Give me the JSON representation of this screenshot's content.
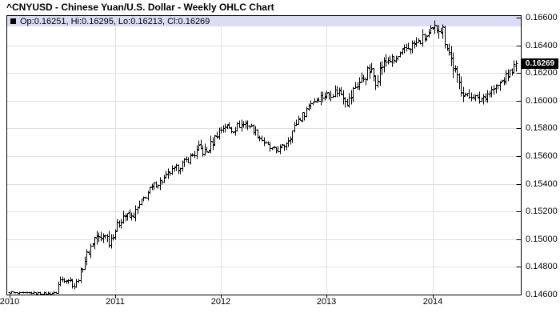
{
  "chart_data": {
    "type": "ohlc",
    "title": "^CNYUSD - Chinese Yuan/U.S. Dollar - Weekly OHLC Chart",
    "symbol": "^CNYUSD",
    "instrument": "Chinese Yuan/U.S. Dollar",
    "interval": "Weekly",
    "legend": {
      "text": "Op:0.16251, Hi:0.16295, Lo:0.16213, Cl:0.16269",
      "open": 0.16251,
      "high": 0.16295,
      "low": 0.16213,
      "close": 0.16269
    },
    "last_price_label": "0.16269",
    "x_axis": {
      "ticks": [
        2010,
        2011,
        2012,
        2013,
        2014
      ],
      "labels": [
        "2010",
        "2011",
        "2012",
        "2013",
        "2014"
      ],
      "range": [
        2010.0,
        2014.85
      ]
    },
    "y_axis": {
      "ticks": [
        0.166,
        0.164,
        0.162,
        0.16,
        0.158,
        0.156,
        0.154,
        0.152,
        0.15,
        0.148,
        0.146
      ],
      "labels": [
        "0.16600",
        "0.16400",
        "0.16200",
        "0.16000",
        "0.15800",
        "0.15600",
        "0.15400",
        "0.15200",
        "0.15000",
        "0.14800",
        "0.14600"
      ],
      "range": [
        0.146,
        0.1661
      ]
    },
    "grid": true,
    "legend_position": "top-left-strip",
    "colors": {
      "bars": "#000000",
      "grid": "#e0e0e0",
      "legend_bg": "#dcdcf4",
      "price_tag_bg": "#000000",
      "price_tag_fg": "#ffffff",
      "axis": "#000000"
    },
    "close_path_anchors": [
      [
        2010.0,
        0.14618,
        0.00018
      ],
      [
        2010.1,
        0.1461,
        0.00018
      ],
      [
        2010.2,
        0.14615,
        0.00018
      ],
      [
        2010.32,
        0.14608,
        0.00018
      ],
      [
        2010.44,
        0.14612,
        0.00022
      ],
      [
        2010.47,
        0.147,
        0.00055
      ],
      [
        2010.53,
        0.14725,
        0.00055
      ],
      [
        2010.58,
        0.147,
        0.0005
      ],
      [
        2010.62,
        0.1466,
        0.0005
      ],
      [
        2010.67,
        0.1476,
        0.0006
      ],
      [
        2010.72,
        0.1487,
        0.00075
      ],
      [
        2010.78,
        0.14965,
        0.00075
      ],
      [
        2010.82,
        0.1503,
        0.0009
      ],
      [
        2010.86,
        0.1499,
        0.0008
      ],
      [
        2010.9,
        0.15055,
        0.0008
      ],
      [
        2010.94,
        0.14985,
        0.0008
      ],
      [
        2011.0,
        0.1507,
        0.0008
      ],
      [
        2011.08,
        0.1518,
        0.00075
      ],
      [
        2011.15,
        0.15155,
        0.0007
      ],
      [
        2011.22,
        0.1523,
        0.0007
      ],
      [
        2011.3,
        0.15335,
        0.00065
      ],
      [
        2011.38,
        0.154,
        0.0006
      ],
      [
        2011.46,
        0.15435,
        0.0006
      ],
      [
        2011.52,
        0.15485,
        0.0006
      ],
      [
        2011.6,
        0.15525,
        0.0006
      ],
      [
        2011.67,
        0.15565,
        0.00065
      ],
      [
        2011.73,
        0.1561,
        0.00075
      ],
      [
        2011.8,
        0.15655,
        0.00095
      ],
      [
        2011.86,
        0.15625,
        0.0008
      ],
      [
        2011.92,
        0.15705,
        0.0008
      ],
      [
        2011.97,
        0.15775,
        0.0007
      ],
      [
        2012.04,
        0.15825,
        0.0007
      ],
      [
        2012.1,
        0.1579,
        0.0007
      ],
      [
        2012.17,
        0.15825,
        0.0007
      ],
      [
        2012.24,
        0.1584,
        0.00065
      ],
      [
        2012.3,
        0.158,
        0.0006
      ],
      [
        2012.36,
        0.15745,
        0.0006
      ],
      [
        2012.42,
        0.15685,
        0.00055
      ],
      [
        2012.48,
        0.1565,
        0.0005
      ],
      [
        2012.54,
        0.15645,
        0.0005
      ],
      [
        2012.6,
        0.1568,
        0.00055
      ],
      [
        2012.66,
        0.1576,
        0.00065
      ],
      [
        2012.72,
        0.15855,
        0.0007
      ],
      [
        2012.78,
        0.15905,
        0.00065
      ],
      [
        2012.84,
        0.15985,
        0.0006
      ],
      [
        2012.9,
        0.16015,
        0.0006
      ],
      [
        2012.96,
        0.16035,
        0.00065
      ],
      [
        2013.04,
        0.16055,
        0.00075
      ],
      [
        2013.1,
        0.16075,
        0.0008
      ],
      [
        2013.16,
        0.1604,
        0.0009
      ],
      [
        2013.21,
        0.15995,
        0.0014
      ],
      [
        2013.26,
        0.16095,
        0.0009
      ],
      [
        2013.33,
        0.1615,
        0.00085
      ],
      [
        2013.4,
        0.16225,
        0.001
      ],
      [
        2013.46,
        0.1616,
        0.00135
      ],
      [
        2013.52,
        0.16255,
        0.00095
      ],
      [
        2013.58,
        0.163,
        0.0008
      ],
      [
        2013.64,
        0.1629,
        0.0008
      ],
      [
        2013.7,
        0.16335,
        0.0008
      ],
      [
        2013.76,
        0.16385,
        0.0008
      ],
      [
        2013.82,
        0.16405,
        0.0008
      ],
      [
        2013.88,
        0.1643,
        0.0009
      ],
      [
        2013.94,
        0.16465,
        0.00095
      ],
      [
        2014.0,
        0.16505,
        0.001
      ],
      [
        2014.05,
        0.16545,
        0.00115
      ],
      [
        2014.09,
        0.1652,
        0.00135
      ],
      [
        2014.13,
        0.1642,
        0.00155
      ],
      [
        2014.18,
        0.16285,
        0.0015
      ],
      [
        2014.23,
        0.16155,
        0.00115
      ],
      [
        2014.28,
        0.1608,
        0.001
      ],
      [
        2014.33,
        0.16025,
        0.00095
      ],
      [
        2014.38,
        0.16055,
        0.0008
      ],
      [
        2014.42,
        0.15995,
        0.00095
      ],
      [
        2014.47,
        0.16025,
        0.0008
      ],
      [
        2014.52,
        0.16055,
        0.00075
      ],
      [
        2014.57,
        0.16085,
        0.00075
      ],
      [
        2014.62,
        0.16115,
        0.00075
      ],
      [
        2014.67,
        0.16155,
        0.00075
      ],
      [
        2014.72,
        0.16195,
        0.0007
      ],
      [
        2014.76,
        0.16235,
        0.0006
      ],
      [
        2014.79,
        0.16269,
        0.00082
      ]
    ]
  }
}
